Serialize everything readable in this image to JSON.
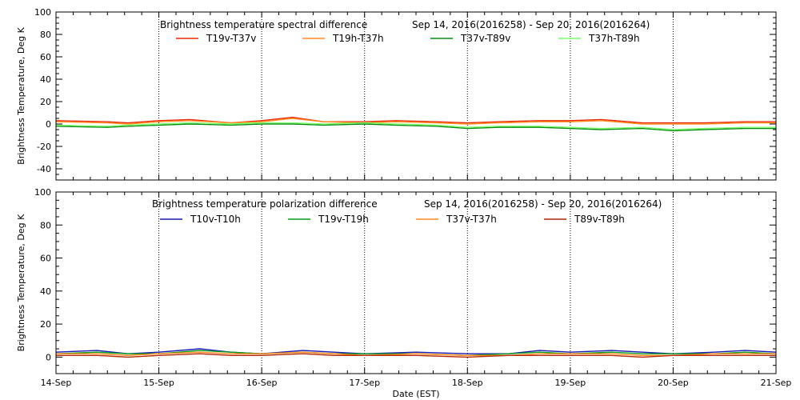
{
  "chart_data": [
    {
      "type": "line",
      "title": "Brightness temperature spectral difference",
      "date_range": "Sep 14, 2016(2016258) - Sep 20, 2016(2016264)",
      "ylabel": "Brightness Temperature, Deg K",
      "ylim": [
        -50,
        100
      ],
      "yticks": [
        -40,
        -20,
        0,
        20,
        40,
        60,
        80,
        100
      ],
      "xlim": [
        0,
        7
      ],
      "vertical_gridlines": true,
      "series": [
        {
          "name": "T19v-T37v",
          "color": "#e8280a",
          "x": [
            0,
            0.5,
            0.7,
            1.0,
            1.3,
            1.7,
            2.0,
            2.3,
            2.6,
            3.0,
            3.3,
            3.7,
            4.0,
            4.3,
            4.7,
            5.0,
            5.3,
            5.7,
            6.0,
            6.3,
            6.7,
            7.0
          ],
          "y": [
            3,
            2,
            1,
            3,
            4,
            1,
            3,
            6,
            2,
            2,
            3,
            2,
            1,
            2,
            3,
            3,
            4,
            1,
            1,
            1,
            2,
            2
          ]
        },
        {
          "name": "T19h-T37h",
          "color": "#ff8a1e",
          "x": [
            0,
            0.5,
            0.7,
            1.0,
            1.3,
            1.7,
            2.0,
            2.3,
            2.6,
            3.0,
            3.3,
            3.7,
            4.0,
            4.3,
            4.7,
            5.0,
            5.3,
            5.7,
            6.0,
            6.3,
            6.7,
            7.0
          ],
          "y": [
            2,
            1,
            0,
            2,
            3,
            1,
            2,
            5,
            2,
            1,
            2,
            1,
            0,
            1,
            2,
            2,
            3,
            0,
            0,
            0,
            1,
            1
          ]
        },
        {
          "name": "T37v-T89v",
          "color": "#0a8a14",
          "x": [
            0,
            0.5,
            0.7,
            1.0,
            1.3,
            1.7,
            2.0,
            2.3,
            2.6,
            3.0,
            3.3,
            3.7,
            4.0,
            4.3,
            4.7,
            5.0,
            5.3,
            5.7,
            6.0,
            6.3,
            6.7,
            7.0
          ],
          "y": [
            -2,
            -3,
            -2,
            -1,
            0,
            -1,
            0,
            0,
            -1,
            0,
            -1,
            -2,
            -4,
            -3,
            -3,
            -4,
            -5,
            -4,
            -6,
            -5,
            -4,
            -4
          ]
        },
        {
          "name": "T37h-T89h",
          "color": "#7cff6a",
          "x": [
            0,
            0.5,
            0.7,
            1.0,
            1.3,
            1.7,
            2.0,
            2.3,
            2.6,
            3.0,
            3.3,
            3.7,
            4.0,
            4.3,
            4.7,
            5.0,
            5.3,
            5.7,
            6.0,
            6.3,
            6.7,
            7.0
          ],
          "y": [
            -1,
            -2,
            -1,
            0,
            1,
            0,
            1,
            1,
            0,
            1,
            0,
            -1,
            -3,
            -2,
            -2,
            -3,
            -4,
            -3,
            -5,
            -4,
            -3,
            -3
          ]
        }
      ]
    },
    {
      "type": "line",
      "title": "Brightness temperature polarization difference",
      "date_range": "Sep 14, 2016(2016258) - Sep 20, 2016(2016264)",
      "ylabel": "Brightness Temperature, Deg K",
      "xlabel": "Date (EST)",
      "ylim": [
        -10,
        100
      ],
      "yticks": [
        0,
        20,
        40,
        60,
        80,
        100
      ],
      "xlim": [
        0,
        7
      ],
      "xticks": [
        "14-Sep",
        "15-Sep",
        "16-Sep",
        "17-Sep",
        "18-Sep",
        "19-Sep",
        "20-Sep",
        "21-Sep"
      ],
      "vertical_gridlines": true,
      "series": [
        {
          "name": "T10v-T10h",
          "color": "#1a1ab4",
          "x": [
            0,
            0.4,
            0.7,
            1.0,
            1.4,
            1.7,
            2.0,
            2.4,
            2.7,
            3.0,
            3.5,
            4.0,
            4.4,
            4.7,
            5.0,
            5.4,
            5.7,
            6.0,
            6.4,
            6.7,
            7.0
          ],
          "y": [
            3,
            4,
            2,
            3,
            5,
            3,
            2,
            4,
            3,
            2,
            3,
            2,
            2,
            4,
            3,
            4,
            3,
            2,
            3,
            4,
            3
          ]
        },
        {
          "name": "T19v-T19h",
          "color": "#0a9a1e",
          "x": [
            0,
            0.4,
            0.7,
            1.0,
            1.4,
            1.7,
            2.0,
            2.4,
            2.7,
            3.0,
            3.5,
            4.0,
            4.4,
            4.7,
            5.0,
            5.4,
            5.7,
            6.0,
            6.4,
            6.7,
            7.0
          ],
          "y": [
            2,
            3,
            2,
            2,
            4,
            3,
            2,
            3,
            2,
            2,
            2,
            1,
            2,
            3,
            2,
            3,
            2,
            2,
            2,
            3,
            2
          ]
        },
        {
          "name": "T37v-T37h",
          "color": "#ff8a1e",
          "x": [
            0,
            0.4,
            0.7,
            1.0,
            1.4,
            1.7,
            2.0,
            2.4,
            2.7,
            3.0,
            3.5,
            4.0,
            4.4,
            4.7,
            5.0,
            5.4,
            5.7,
            6.0,
            6.4,
            6.7,
            7.0
          ],
          "y": [
            2,
            2,
            1,
            2,
            3,
            2,
            2,
            3,
            2,
            1,
            2,
            1,
            1,
            2,
            2,
            2,
            1,
            1,
            2,
            2,
            2
          ]
        },
        {
          "name": "T89v-T89h",
          "color": "#b4280a",
          "x": [
            0,
            0.4,
            0.7,
            1.0,
            1.4,
            1.7,
            2.0,
            2.4,
            2.7,
            3.0,
            3.5,
            4.0,
            4.4,
            4.7,
            5.0,
            5.4,
            5.7,
            6.0,
            6.4,
            6.7,
            7.0
          ],
          "y": [
            1,
            1,
            0,
            1,
            2,
            1,
            1,
            2,
            1,
            1,
            1,
            0,
            1,
            1,
            1,
            1,
            0,
            1,
            1,
            1,
            1
          ]
        }
      ]
    }
  ]
}
